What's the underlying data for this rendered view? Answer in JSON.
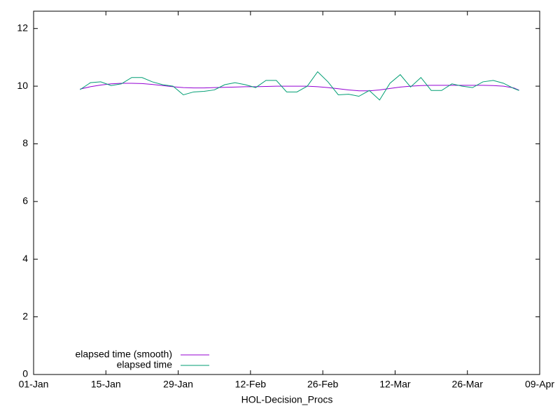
{
  "chart_data": {
    "type": "line",
    "x_label": "HOL-Decision_Procs",
    "x": [
      "10-Jan",
      "12-Jan",
      "14-Jan",
      "16-Jan",
      "18-Jan",
      "20-Jan",
      "22-Jan",
      "24-Jan",
      "26-Jan",
      "28-Jan",
      "30-Jan",
      "01-Feb",
      "03-Feb",
      "05-Feb",
      "07-Feb",
      "09-Feb",
      "11-Feb",
      "13-Feb",
      "15-Feb",
      "17-Feb",
      "19-Feb",
      "21-Feb",
      "23-Feb",
      "25-Feb",
      "27-Feb",
      "01-Mar",
      "03-Mar",
      "05-Mar",
      "07-Mar",
      "09-Mar",
      "11-Mar",
      "13-Mar",
      "15-Mar",
      "17-Mar",
      "19-Mar",
      "21-Mar",
      "23-Mar",
      "25-Mar",
      "27-Mar",
      "29-Mar",
      "31-Mar",
      "02-Apr",
      "04-Apr",
      "05-Apr"
    ],
    "series": [
      {
        "name": "elapsed time (smooth)",
        "color": "#9400d3",
        "values": [
          9.9,
          9.98,
          10.04,
          10.08,
          10.1,
          10.1,
          10.09,
          10.06,
          10.02,
          9.98,
          9.95,
          9.94,
          9.94,
          9.95,
          9.96,
          9.97,
          9.98,
          9.98,
          9.99,
          10.0,
          10.0,
          10.0,
          10.0,
          9.98,
          9.95,
          9.91,
          9.87,
          9.84,
          9.84,
          9.87,
          9.92,
          9.97,
          10.0,
          10.02,
          10.03,
          10.03,
          10.03,
          10.03,
          10.03,
          10.03,
          10.02,
          10.0,
          9.94,
          9.86
        ]
      },
      {
        "name": "elapsed time",
        "color": "#009e73",
        "values": [
          9.88,
          10.12,
          10.15,
          10.02,
          10.08,
          10.3,
          10.3,
          10.15,
          10.05,
          10.0,
          9.7,
          9.8,
          9.82,
          9.87,
          10.05,
          10.12,
          10.05,
          9.95,
          10.2,
          10.2,
          9.8,
          9.8,
          10.0,
          10.5,
          10.15,
          9.7,
          9.72,
          9.65,
          9.85,
          9.52,
          10.1,
          10.4,
          9.97,
          10.3,
          9.85,
          9.85,
          10.08,
          10.0,
          9.95,
          10.15,
          10.2,
          10.1,
          9.92,
          9.85
        ]
      }
    ],
    "xlim": [
      "01-Jan",
      "09-Apr"
    ],
    "xticks": [
      "01-Jan",
      "15-Jan",
      "29-Jan",
      "12-Feb",
      "26-Feb",
      "12-Mar",
      "26-Mar",
      "09-Apr"
    ],
    "ylim": [
      0,
      12.6
    ],
    "yticks": [
      0,
      2,
      4,
      6,
      8,
      10,
      12
    ],
    "legend": "bottom-left"
  }
}
